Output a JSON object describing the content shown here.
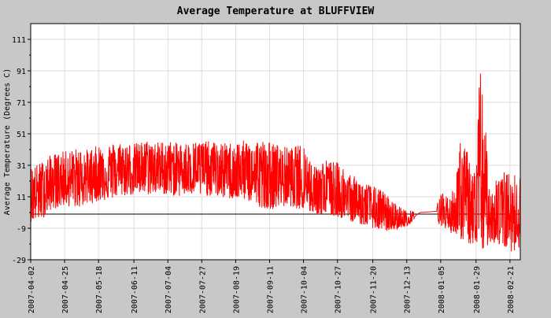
{
  "chart_data": {
    "type": "line",
    "title": "Average Temperature at BLUFFVIEW",
    "ylabel": "Average Temperature (Degrees C)",
    "xlabel": "",
    "ylim": [
      -29,
      121
    ],
    "y_ticks": [
      -29,
      -9,
      11,
      31,
      51,
      71,
      91,
      111
    ],
    "x_tick_labels": [
      "2007-04-02",
      "2007-04-25",
      "2007-05-18",
      "2007-06-11",
      "2007-07-04",
      "2007-07-27",
      "2007-08-19",
      "2007-09-11",
      "2007-10-04",
      "2007-10-27",
      "2007-11-20",
      "2007-12-13",
      "2008-01-05",
      "2008-01-29",
      "2008-02-21"
    ],
    "zero_line": 0,
    "grid": true,
    "legend": "none",
    "series": [
      {
        "color": "#ff0000",
        "x": [
          "2007-04-02",
          "2007-04-09",
          "2007-04-16",
          "2007-04-25",
          "2007-05-04",
          "2007-05-11",
          "2007-05-18",
          "2007-05-25",
          "2007-06-01",
          "2007-06-11",
          "2007-06-20",
          "2007-06-27",
          "2007-07-04",
          "2007-07-11",
          "2007-07-20",
          "2007-07-27",
          "2007-08-03",
          "2007-08-10",
          "2007-08-19",
          "2007-08-26",
          "2007-09-02",
          "2007-09-11",
          "2007-09-18",
          "2007-09-25",
          "2007-10-04",
          "2007-10-11",
          "2007-10-18",
          "2007-10-27",
          "2007-11-03",
          "2007-11-10",
          "2007-11-20",
          "2007-11-27",
          "2007-12-04",
          "2007-12-13",
          "2007-12-22",
          "2008-01-05",
          "2008-01-12",
          "2008-01-19",
          "2008-01-29",
          "2008-02-01",
          "2008-02-04",
          "2008-02-07",
          "2008-02-14",
          "2008-02-21",
          "2008-02-28"
        ],
        "low": [
          -5,
          -4,
          3,
          5,
          4,
          6,
          8,
          9,
          11,
          12,
          12,
          13,
          12,
          11,
          12,
          11,
          12,
          10,
          9,
          9,
          5,
          3,
          4,
          5,
          2,
          0,
          -1,
          -2,
          -4,
          -6,
          -9,
          -11,
          -10,
          -8,
          0,
          -7,
          -12,
          -16,
          -22,
          -25,
          -23,
          -18,
          -20,
          -24,
          -22
        ],
        "high": [
          30,
          33,
          38,
          40,
          42,
          41,
          44,
          45,
          46,
          45,
          47,
          46,
          47,
          45,
          46,
          47,
          46,
          45,
          46,
          47,
          48,
          46,
          44,
          42,
          45,
          30,
          35,
          33,
          28,
          22,
          18,
          15,
          8,
          2,
          3,
          14,
          10,
          50,
          26,
          110,
          60,
          20,
          28,
          26,
          25
        ],
        "mean": [
          12,
          15,
          18,
          22,
          22,
          23,
          25,
          26,
          27,
          28,
          29,
          29,
          28,
          29,
          28,
          28,
          27,
          27,
          25,
          24,
          24,
          23,
          22,
          22,
          22,
          15,
          13,
          11,
          8,
          5,
          2,
          -2,
          -5,
          -5,
          1,
          2,
          -2,
          3,
          -4,
          -2,
          10,
          -1,
          0,
          -3,
          -2
        ]
      }
    ]
  }
}
